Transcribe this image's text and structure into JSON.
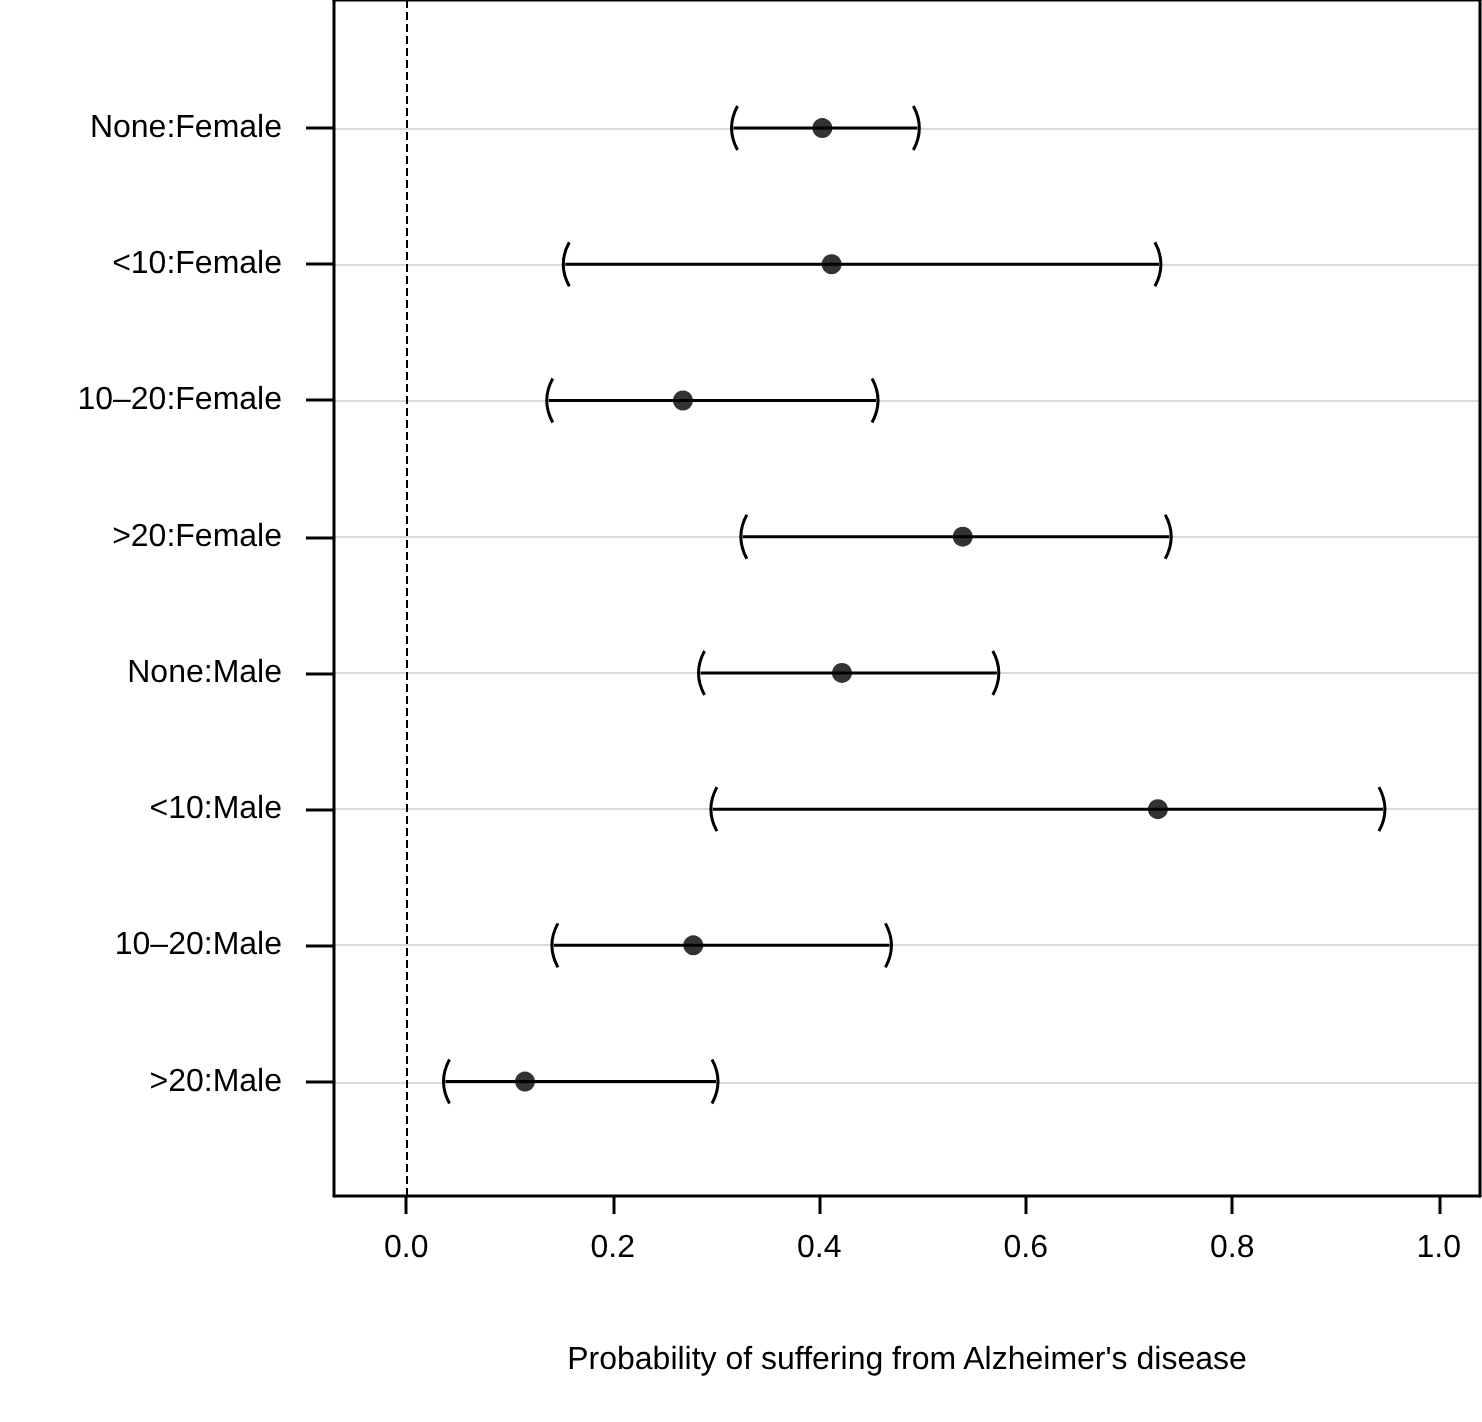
{
  "chart_data": {
    "type": "scatter",
    "orientation": "horizontal",
    "xlabel": "Probability of suffering from Alzheimer's disease",
    "categories": [
      "None:Female",
      "<10:Female",
      "10–20:Female",
      ">20:Female",
      "None:Male",
      "<10:Male",
      "10–20:Male",
      ">20:Male"
    ],
    "values": [
      0.403,
      0.412,
      0.268,
      0.539,
      0.422,
      0.728,
      0.278,
      0.115
    ],
    "errors": [
      [
        0.317,
        0.495
      ],
      [
        0.154,
        0.729
      ],
      [
        0.138,
        0.455
      ],
      [
        0.326,
        0.739
      ],
      [
        0.285,
        0.572
      ],
      [
        0.297,
        0.946
      ],
      [
        0.143,
        0.468
      ],
      [
        0.038,
        0.3
      ]
    ],
    "color": "#000000",
    "xlim": [
      -0.07,
      1.04
    ],
    "xticks": [
      {
        "value": 0,
        "label": "0.0"
      },
      0.2,
      0.4,
      0.6,
      0.8,
      {
        "value": 1,
        "label": "1.0"
      }
    ],
    "ref_lines": [
      {
        "axis": "x",
        "value": 0,
        "label": null,
        "line_style": "dashed",
        "color": "#000000"
      }
    ],
    "grid": "y",
    "marker": "circle"
  }
}
